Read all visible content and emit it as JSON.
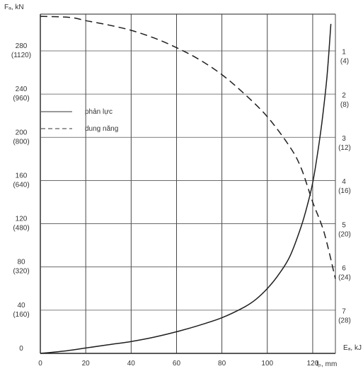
{
  "chart_data": {
    "type": "line",
    "ylabel": "Fₐ, kN",
    "xlabel": "fₚ, mm",
    "y2label": "Eₐ, kJ",
    "x_ticks": [
      "0",
      "20",
      "40",
      "60",
      "80",
      "100",
      "120"
    ],
    "y_ticks_left": [
      {
        "top": "0",
        "bottom": ""
      },
      {
        "top": "40",
        "bottom": "(160)"
      },
      {
        "top": "80",
        "bottom": "(320)"
      },
      {
        "top": "120",
        "bottom": "(480)"
      },
      {
        "top": "160",
        "bottom": "(640)"
      },
      {
        "top": "200",
        "bottom": "(800)"
      },
      {
        "top": "240",
        "bottom": "(960)"
      },
      {
        "top": "280",
        "bottom": "(1120)"
      }
    ],
    "y_ticks_right": [
      {
        "top": "7",
        "bottom": "(28)"
      },
      {
        "top": "6",
        "bottom": "(24)"
      },
      {
        "top": "5",
        "bottom": "(20)"
      },
      {
        "top": "4",
        "bottom": "(16)"
      },
      {
        "top": "3",
        "bottom": "(12)"
      },
      {
        "top": "2",
        "bottom": "(8)"
      },
      {
        "top": "1",
        "bottom": "(4)"
      }
    ],
    "xlim": [
      0,
      130
    ],
    "ylim": [
      0,
      314
    ],
    "grid": true,
    "legend_position": "upper-left inside",
    "series": [
      {
        "name": "phản lực",
        "style": "solid",
        "x": [
          0,
          10,
          20,
          30,
          40,
          50,
          60,
          70,
          80,
          90,
          95,
          100,
          105,
          110,
          115,
          118,
          120,
          122,
          124,
          126,
          127,
          128
        ],
        "y": [
          0,
          2,
          5,
          8,
          11,
          15,
          20,
          26,
          33,
          43,
          50,
          60,
          73,
          90,
          118,
          140,
          158,
          183,
          213,
          250,
          275,
          305
        ]
      },
      {
        "name": "dung năng",
        "style": "dashed",
        "x": [
          0,
          13,
          20,
          30,
          40,
          50,
          60,
          70,
          80,
          90,
          100,
          110,
          115,
          120,
          125,
          130
        ],
        "y": [
          312,
          311,
          308,
          304,
          299,
          292,
          283,
          272,
          258,
          240,
          219,
          191,
          171,
          140,
          112,
          69
        ]
      }
    ]
  }
}
